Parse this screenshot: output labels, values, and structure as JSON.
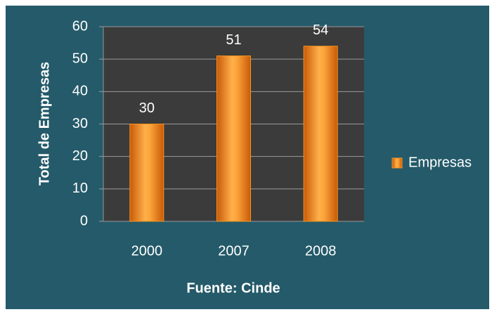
{
  "chart_data": {
    "type": "bar",
    "categories": [
      "2000",
      "2007",
      "2008"
    ],
    "series": [
      {
        "name": "Empresas",
        "color": "#f7941d",
        "values": [
          30,
          51,
          54
        ]
      }
    ],
    "ylim": [
      0,
      60
    ],
    "yticks": [
      0,
      10,
      20,
      30,
      40,
      50,
      60
    ],
    "grid": true,
    "y_label": "Total de Empresas",
    "x_label": "Fuente: Cinde",
    "legend": "right"
  }
}
